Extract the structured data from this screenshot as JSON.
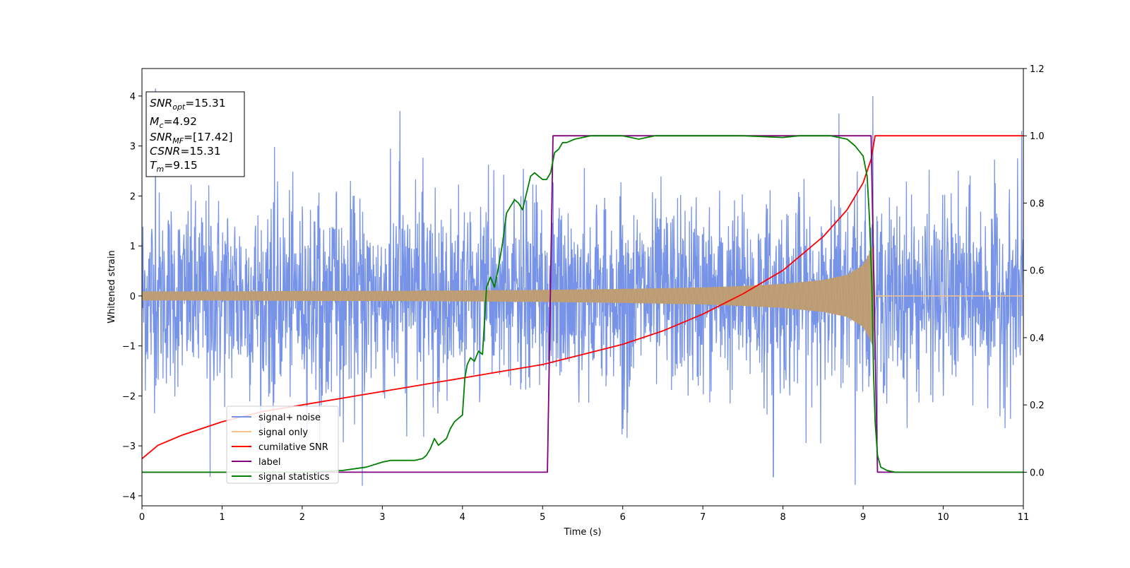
{
  "chart_data": {
    "type": "line",
    "xlabel": "Time (s)",
    "ylabel": "Whitened strain",
    "xlim": [
      0,
      11
    ],
    "ylim": [
      -4.2,
      4.55
    ],
    "y2lim": [
      -0.1,
      1.2
    ],
    "x_ticks": [
      "0",
      "1",
      "2",
      "3",
      "4",
      "5",
      "6",
      "7",
      "8",
      "9",
      "10",
      "11"
    ],
    "y_ticks": [
      "−4",
      "−3",
      "−2",
      "−1",
      "0",
      "1",
      "2",
      "3",
      "4"
    ],
    "y2_ticks": [
      "0.0",
      "0.2",
      "0.4",
      "0.6",
      "0.8",
      "1.0",
      "1.2"
    ],
    "grid": false,
    "legend_position": "lower-left",
    "info_box": {
      "lines": [
        {
          "sym": "SNR",
          "sub": "opt",
          "val": "=15.31"
        },
        {
          "sym": "M",
          "sub": "c",
          "val": "=4.92"
        },
        {
          "sym": "SNR",
          "sub": "MF",
          "val": "=[17.42]"
        },
        {
          "sym": "CSNR",
          "sub": "",
          "val": "=15.31"
        },
        {
          "sym": "T",
          "sub": "m",
          "val": "=9.15"
        }
      ]
    },
    "series": [
      {
        "name": "signal+ noise",
        "color": "#7793e8",
        "axis": "left",
        "noise_typical_range": [
          -1.8,
          2.2
        ],
        "noise_peak_range": [
          -3.8,
          4.2
        ],
        "notable_peaks": [
          [
            0.17,
            4.15
          ],
          [
            3.22,
            3.7
          ],
          [
            8.7,
            3.65
          ],
          [
            9.12,
            4.0
          ],
          [
            10.98,
            3.3
          ],
          [
            2.75,
            -3.8
          ],
          [
            8.9,
            -3.78
          ],
          [
            0.85,
            -3.62
          ],
          [
            7.88,
            -3.62
          ]
        ]
      },
      {
        "name": "signal only",
        "color": "#f6c18a",
        "axis": "left",
        "envelope": {
          "x": [
            0,
            1,
            2,
            3,
            4,
            5,
            6,
            7,
            7.5,
            8,
            8.5,
            8.8,
            9.0,
            9.08,
            9.13,
            9.15
          ],
          "amplitude": [
            0.09,
            0.09,
            0.1,
            0.1,
            0.11,
            0.12,
            0.14,
            0.17,
            0.2,
            0.24,
            0.32,
            0.42,
            0.62,
            0.85,
            1.05,
            0
          ]
        },
        "after_merger_value": 0
      },
      {
        "name": "cumilative SNR",
        "color": "#ff0000",
        "axis": "right",
        "x": [
          0,
          0.2,
          0.5,
          1,
          1.5,
          2,
          2.5,
          3,
          3.5,
          4,
          4.5,
          5,
          5.5,
          6,
          6.5,
          7,
          7.5,
          8,
          8.5,
          8.8,
          9.0,
          9.1,
          9.15,
          11
        ],
        "y": [
          0.04,
          0.08,
          0.11,
          0.15,
          0.18,
          0.2,
          0.22,
          0.24,
          0.26,
          0.28,
          0.3,
          0.32,
          0.35,
          0.38,
          0.42,
          0.47,
          0.53,
          0.6,
          0.7,
          0.78,
          0.86,
          0.93,
          1.0,
          1.0
        ]
      },
      {
        "name": "label",
        "color": "#800080",
        "axis": "right",
        "x": [
          0,
          5.06,
          5.13,
          9.1,
          9.18,
          11
        ],
        "y": [
          0,
          0,
          1,
          1,
          0,
          0
        ]
      },
      {
        "name": "signal statistics",
        "color": "#008000",
        "axis": "right",
        "x": [
          0,
          2.0,
          2.5,
          2.8,
          3.0,
          3.1,
          3.2,
          3.3,
          3.4,
          3.5,
          3.55,
          3.6,
          3.65,
          3.7,
          3.75,
          3.8,
          3.85,
          3.9,
          3.95,
          4.0,
          4.03,
          4.06,
          4.1,
          4.15,
          4.2,
          4.25,
          4.3,
          4.35,
          4.4,
          4.45,
          4.5,
          4.55,
          4.6,
          4.65,
          4.7,
          4.75,
          4.8,
          4.85,
          4.9,
          4.95,
          5.0,
          5.05,
          5.1,
          5.15,
          5.2,
          5.25,
          5.3,
          5.35,
          5.4,
          5.5,
          5.6,
          5.8,
          6.0,
          6.2,
          6.4,
          6.6,
          7.0,
          7.5,
          8.0,
          8.2,
          8.4,
          8.6,
          8.8,
          8.9,
          9.0,
          9.05,
          9.08,
          9.11,
          9.13,
          9.15,
          9.18,
          9.22,
          9.3,
          9.4,
          11
        ],
        "y": [
          0,
          0,
          0.005,
          0.015,
          0.03,
          0.035,
          0.035,
          0.035,
          0.035,
          0.04,
          0.05,
          0.07,
          0.1,
          0.08,
          0.09,
          0.1,
          0.13,
          0.15,
          0.16,
          0.17,
          0.28,
          0.32,
          0.34,
          0.33,
          0.36,
          0.35,
          0.55,
          0.58,
          0.55,
          0.61,
          0.68,
          0.77,
          0.79,
          0.81,
          0.8,
          0.78,
          0.83,
          0.88,
          0.89,
          0.88,
          0.87,
          0.87,
          0.89,
          0.95,
          0.96,
          0.98,
          0.98,
          0.985,
          0.99,
          0.995,
          1.0,
          1.0,
          1.0,
          0.99,
          1.0,
          1.0,
          1.0,
          1.0,
          0.995,
          1.0,
          1.0,
          1.0,
          0.99,
          0.97,
          0.94,
          0.88,
          0.75,
          0.55,
          0.3,
          0.15,
          0.05,
          0.015,
          0.005,
          0,
          0
        ]
      }
    ]
  }
}
